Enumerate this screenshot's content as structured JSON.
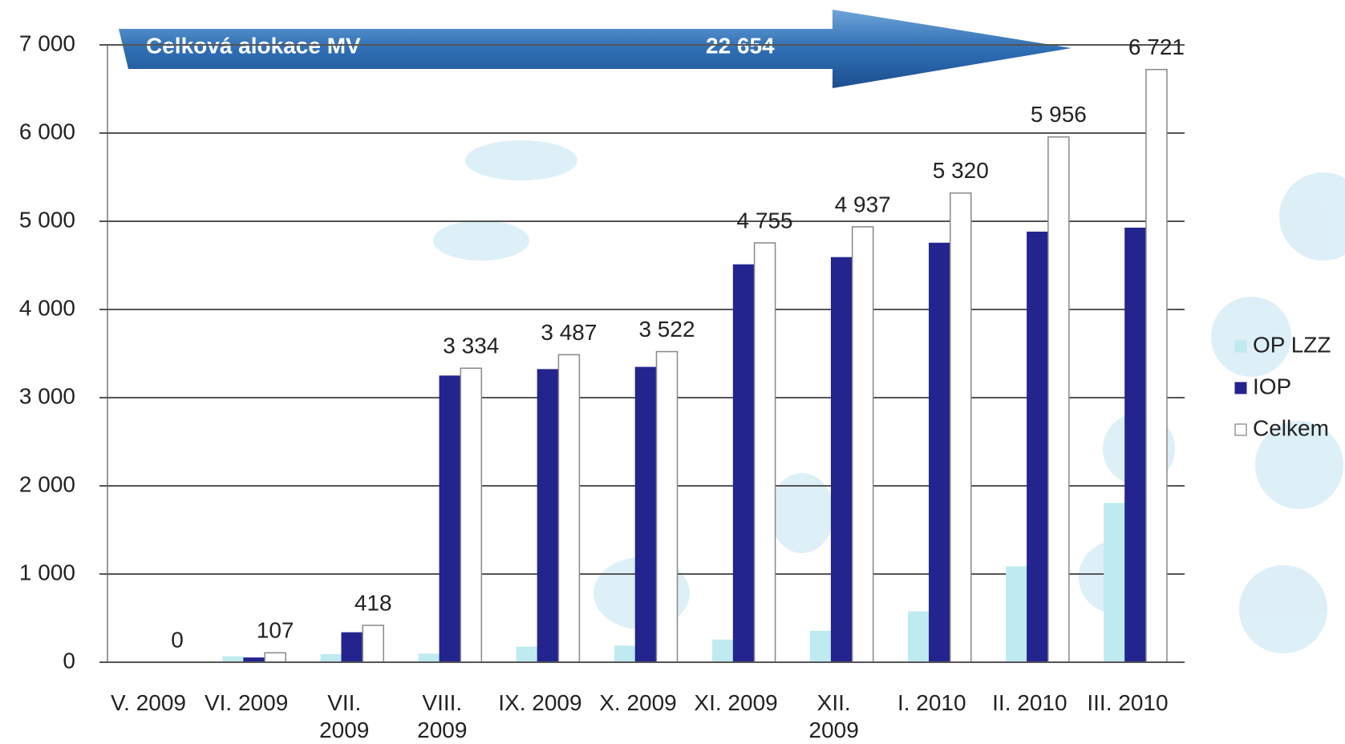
{
  "chart_data": {
    "type": "bar",
    "annotations": [
      "Celková alokace MV",
      "22 654"
    ],
    "categories": [
      "V. 2009",
      "VI. 2009",
      "VII. 2009",
      "VIII. 2009",
      "IX. 2009",
      "X. 2009",
      "XI. 2009",
      "XII. 2009",
      "I. 2010",
      "II. 2010",
      "III. 2010"
    ],
    "series": [
      {
        "name": "OP LZZ",
        "color": "#bfeaf0",
        "values": [
          0,
          60,
          85,
          90,
          170,
          180,
          250,
          350,
          570,
          1080,
          1800
        ]
      },
      {
        "name": "IOP",
        "color": "#24248f",
        "values": [
          0,
          47,
          333,
          3244,
          3317,
          3342,
          4505,
          4587,
          4750,
          4876,
          4921
        ]
      },
      {
        "name": "Celkem",
        "color": "#ffffff",
        "values": [
          0,
          107,
          418,
          3334,
          3487,
          3522,
          4755,
          4937,
          5320,
          5956,
          6721
        ],
        "value_labels": [
          "0",
          "107",
          "418",
          "3 334",
          "3 487",
          "3 522",
          "4 755",
          "4 937",
          "5 320",
          "5 956",
          "6 721"
        ]
      }
    ],
    "ylim": [
      0,
      7000
    ],
    "yticks": [
      0,
      {
        "value": 1000,
        "label": "1 000"
      },
      {
        "value": 2000,
        "label": "2 000"
      },
      {
        "value": 3000,
        "label": "3 000"
      },
      {
        "value": 4000,
        "label": "4 000"
      },
      {
        "value": 5000,
        "label": "5 000"
      },
      {
        "value": 6000,
        "label": "6 000"
      },
      {
        "value": 7000,
        "label": "7 000"
      }
    ],
    "grid": true,
    "legend": "right"
  }
}
